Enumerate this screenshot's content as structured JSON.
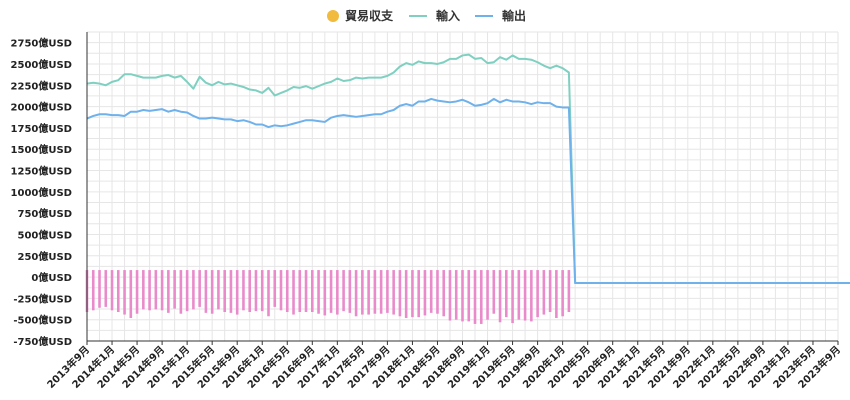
{
  "colors": {
    "trade_balance": "#e98bcb",
    "trade_balance_legend": "#f0bb3f",
    "imports": "#7fd0c1",
    "exports": "#6fb1eb",
    "grid": "#e6e6e6",
    "axis": "#333333"
  },
  "chart_data": {
    "type": "bar+line",
    "legend": {
      "placement": "top-center",
      "items": [
        {
          "label": "貿易収支",
          "marker": "circle",
          "color": "#f0bb3f"
        },
        {
          "label": "輸入",
          "marker": "line",
          "color": "#7fd0c1"
        },
        {
          "label": "輸出",
          "marker": "line",
          "color": "#6fb1eb"
        }
      ]
    },
    "x_tick_labels": [
      "2013年9月",
      "2014年1月",
      "2014年5月",
      "2014年9月",
      "2015年1月",
      "2015年5月",
      "2015年9月",
      "2016年1月",
      "2016年5月",
      "2016年9月",
      "2017年1月",
      "2017年5月",
      "2017年9月",
      "2018年1月",
      "2018年5月",
      "2018年9月",
      "2019年1月",
      "2019年5月",
      "2019年9月",
      "2020年1月",
      "2020年5月",
      "2020年9月",
      "2021年1月",
      "2021年5月",
      "2021年9月",
      "2022年1月",
      "2022年5月",
      "2022年9月",
      "2023年1月",
      "2023年5月",
      "2023年9月"
    ],
    "x_range": [
      "2013-09",
      "2023-09"
    ],
    "y_tick_labels": [
      "2750億USD",
      "2500億USD",
      "2250億USD",
      "2000億USD",
      "1750億USD",
      "1500億USD",
      "1250億USD",
      "1000億USD",
      "750億USD",
      "500億USD",
      "250億USD",
      "0億USD",
      "-250億USD",
      "-500億USD",
      "-750億USD"
    ],
    "y_ticks": [
      2750,
      2500,
      2250,
      2000,
      1750,
      1500,
      1250,
      1000,
      750,
      500,
      250,
      0,
      -250,
      -500,
      -750
    ],
    "ylim": [
      -750,
      2875
    ],
    "grid": true,
    "imports": [
      2270,
      2280,
      2270,
      2250,
      2290,
      2310,
      2380,
      2380,
      2360,
      2340,
      2340,
      2340,
      2360,
      2370,
      2340,
      2360,
      2290,
      2210,
      2350,
      2280,
      2250,
      2290,
      2260,
      2270,
      2250,
      2230,
      2200,
      2190,
      2160,
      2220,
      2130,
      2160,
      2190,
      2230,
      2220,
      2240,
      2210,
      2240,
      2270,
      2290,
      2330,
      2300,
      2310,
      2340,
      2330,
      2340,
      2340,
      2340,
      2360,
      2400,
      2470,
      2510,
      2490,
      2530,
      2510,
      2510,
      2500,
      2520,
      2560,
      2560,
      2600,
      2610,
      2560,
      2570,
      2510,
      2520,
      2580,
      2550,
      2600,
      2560,
      2560,
      2550,
      2520,
      2480,
      2450,
      2480,
      2450,
      2400,
      -70,
      -70,
      -70,
      -70,
      -70,
      -70,
      -70,
      -70,
      -70,
      -70,
      -70,
      -70,
      -70,
      -70,
      -70,
      -70,
      -70,
      -70,
      -70,
      -70,
      -70,
      -70,
      -70,
      -70,
      -70,
      -70,
      -70,
      -70,
      -70,
      -70,
      -70,
      -70,
      -70,
      -70,
      -70,
      -70,
      -70,
      -70,
      -70,
      -70,
      -70,
      -70,
      -70,
      -70,
      -70,
      -70,
      -70,
      -70,
      -70,
      -70,
      -70,
      -70,
      -70,
      -70
    ],
    "exports": [
      1860,
      1890,
      1910,
      1910,
      1900,
      1900,
      1890,
      1940,
      1940,
      1960,
      1950,
      1960,
      1970,
      1940,
      1960,
      1940,
      1930,
      1890,
      1860,
      1860,
      1870,
      1860,
      1850,
      1850,
      1830,
      1840,
      1820,
      1790,
      1790,
      1760,
      1780,
      1770,
      1780,
      1800,
      1820,
      1840,
      1840,
      1830,
      1820,
      1870,
      1890,
      1900,
      1890,
      1880,
      1890,
      1900,
      1910,
      1910,
      1940,
      1960,
      2010,
      2030,
      2010,
      2060,
      2060,
      2090,
      2070,
      2060,
      2050,
      2060,
      2080,
      2050,
      2010,
      2020,
      2040,
      2090,
      2050,
      2080,
      2060,
      2060,
      2050,
      2030,
      2050,
      2040,
      2040,
      2000,
      1990,
      1990,
      -70,
      -70,
      -70,
      -70,
      -70,
      -70,
      -70,
      -70,
      -70,
      -70,
      -70,
      -70,
      -70,
      -70,
      -70,
      -70,
      -70,
      -70,
      -70,
      -70,
      -70,
      -70,
      -70,
      -70,
      -70,
      -70,
      -70,
      -70,
      -70,
      -70,
      -70,
      -70,
      -70,
      -70,
      -70,
      -70,
      -70,
      -70,
      -70,
      -70,
      -70,
      -70,
      -70,
      -70,
      -70,
      -70,
      -70,
      -70,
      -70,
      -70,
      -70,
      -70,
      -70,
      -70,
      -70,
      -70
    ],
    "trade_balance": [
      -410,
      -390,
      -360,
      -350,
      -390,
      -410,
      -440,
      -480,
      -430,
      -380,
      -390,
      -380,
      -390,
      -420,
      -370,
      -430,
      -400,
      -380,
      -350,
      -420,
      -430,
      -380,
      -410,
      -420,
      -440,
      -390,
      -410,
      -400,
      -400,
      -460,
      -350,
      -390,
      -410,
      -440,
      -410,
      -410,
      -410,
      -430,
      -450,
      -420,
      -440,
      -400,
      -420,
      -460,
      -440,
      -440,
      -430,
      -430,
      -420,
      -440,
      -460,
      -480,
      -470,
      -470,
      -450,
      -420,
      -430,
      -460,
      -510,
      -500,
      -520,
      -520,
      -550,
      -550,
      -500,
      -430,
      -530,
      -470,
      -540,
      -500,
      -510,
      -520,
      -470,
      -440,
      -410,
      -480,
      -460,
      -410
    ]
  }
}
